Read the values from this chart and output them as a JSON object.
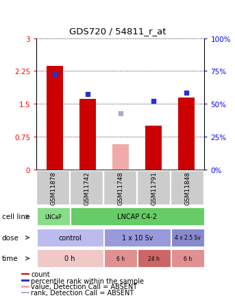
{
  "title": "GDS720 / 54811_r_at",
  "samples": [
    "GSM11878",
    "GSM11742",
    "GSM11748",
    "GSM11791",
    "GSM11848"
  ],
  "bar_values": [
    2.37,
    1.62,
    0.58,
    1.0,
    1.65
  ],
  "bar_absent": [
    false,
    false,
    true,
    false,
    false
  ],
  "bar_color_present": "#cc0000",
  "bar_color_absent": "#f0aaaa",
  "blue_dots": [
    2.18,
    1.73,
    1.28,
    1.57,
    1.75
  ],
  "blue_dot_absent": [
    false,
    false,
    true,
    false,
    false
  ],
  "blue_color_present": "#2233cc",
  "blue_color_absent": "#aaaacc",
  "ylim_left": [
    0,
    3
  ],
  "ylim_right": [
    0,
    100
  ],
  "yticks_left": [
    0,
    0.75,
    1.5,
    2.25,
    3
  ],
  "yticks_right": [
    0,
    25,
    50,
    75,
    100
  ],
  "ytick_labels_left": [
    "0",
    "0.75",
    "1.5",
    "2.25",
    "3"
  ],
  "ytick_labels_right": [
    "0%",
    "25%",
    "50%",
    "75%",
    "100%"
  ],
  "cell_line_labels": [
    {
      "text": "LNCaP",
      "span": [
        0,
        1
      ],
      "color": "#88dd88"
    },
    {
      "text": "LNCAP C4-2",
      "span": [
        1,
        5
      ],
      "color": "#66cc66"
    }
  ],
  "dose_labels": [
    {
      "text": "control",
      "span": [
        0,
        2
      ],
      "color": "#bbbbee"
    },
    {
      "text": "1 x 10 Sv",
      "span": [
        2,
        4
      ],
      "color": "#9999dd"
    },
    {
      "text": "4 x 2.5 Sv",
      "span": [
        4,
        5
      ],
      "color": "#8888cc"
    }
  ],
  "time_labels": [
    {
      "text": "0 h",
      "span": [
        0,
        2
      ],
      "color": "#f0c8c8"
    },
    {
      "text": "6 h",
      "span": [
        2,
        3
      ],
      "color": "#e09090"
    },
    {
      "text": "24 h",
      "span": [
        3,
        4
      ],
      "color": "#cc6666"
    },
    {
      "text": "6 h",
      "span": [
        4,
        5
      ],
      "color": "#e09090"
    }
  ],
  "row_labels": [
    "cell line",
    "dose",
    "time"
  ],
  "legend_colors": [
    "#cc0000",
    "#2233cc",
    "#f0aaaa",
    "#aaaacc"
  ],
  "legend_labels": [
    "count",
    "percentile rank within the sample",
    "value, Detection Call = ABSENT",
    "rank, Detection Call = ABSENT"
  ],
  "sample_box_color": "#cccccc",
  "n_samples": 5
}
